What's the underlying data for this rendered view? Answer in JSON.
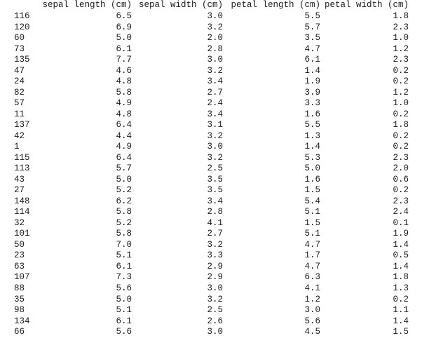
{
  "table": {
    "columns": [
      "sepal length (cm)",
      "sepal width (cm)",
      "petal length (cm)",
      "petal width (cm)"
    ],
    "rows": [
      [
        "116",
        "6.5",
        "3.0",
        "5.5",
        "1.8"
      ],
      [
        "120",
        "6.9",
        "3.2",
        "5.7",
        "2.3"
      ],
      [
        "60",
        "5.0",
        "2.0",
        "3.5",
        "1.0"
      ],
      [
        "73",
        "6.1",
        "2.8",
        "4.7",
        "1.2"
      ],
      [
        "135",
        "7.7",
        "3.0",
        "6.1",
        "2.3"
      ],
      [
        "47",
        "4.6",
        "3.2",
        "1.4",
        "0.2"
      ],
      [
        "24",
        "4.8",
        "3.4",
        "1.9",
        "0.2"
      ],
      [
        "82",
        "5.8",
        "2.7",
        "3.9",
        "1.2"
      ],
      [
        "57",
        "4.9",
        "2.4",
        "3.3",
        "1.0"
      ],
      [
        "11",
        "4.8",
        "3.4",
        "1.6",
        "0.2"
      ],
      [
        "137",
        "6.4",
        "3.1",
        "5.5",
        "1.8"
      ],
      [
        "42",
        "4.4",
        "3.2",
        "1.3",
        "0.2"
      ],
      [
        "1",
        "4.9",
        "3.0",
        "1.4",
        "0.2"
      ],
      [
        "115",
        "6.4",
        "3.2",
        "5.3",
        "2.3"
      ],
      [
        "113",
        "5.7",
        "2.5",
        "5.0",
        "2.0"
      ],
      [
        "43",
        "5.0",
        "3.5",
        "1.6",
        "0.6"
      ],
      [
        "27",
        "5.2",
        "3.5",
        "1.5",
        "0.2"
      ],
      [
        "148",
        "6.2",
        "3.4",
        "5.4",
        "2.3"
      ],
      [
        "114",
        "5.8",
        "2.8",
        "5.1",
        "2.4"
      ],
      [
        "32",
        "5.2",
        "4.1",
        "1.5",
        "0.1"
      ],
      [
        "101",
        "5.8",
        "2.7",
        "5.1",
        "1.9"
      ],
      [
        "50",
        "7.0",
        "3.2",
        "4.7",
        "1.4"
      ],
      [
        "23",
        "5.1",
        "3.3",
        "1.7",
        "0.5"
      ],
      [
        "63",
        "6.1",
        "2.9",
        "4.7",
        "1.4"
      ],
      [
        "107",
        "7.3",
        "2.9",
        "6.3",
        "1.8"
      ],
      [
        "88",
        "5.6",
        "3.0",
        "4.1",
        "1.3"
      ],
      [
        "35",
        "5.0",
        "3.2",
        "1.2",
        "0.2"
      ],
      [
        "98",
        "5.1",
        "2.5",
        "3.0",
        "1.1"
      ],
      [
        "134",
        "6.1",
        "2.6",
        "5.6",
        "1.4"
      ],
      [
        "66",
        "5.6",
        "3.0",
        "4.5",
        "1.5"
      ]
    ]
  }
}
